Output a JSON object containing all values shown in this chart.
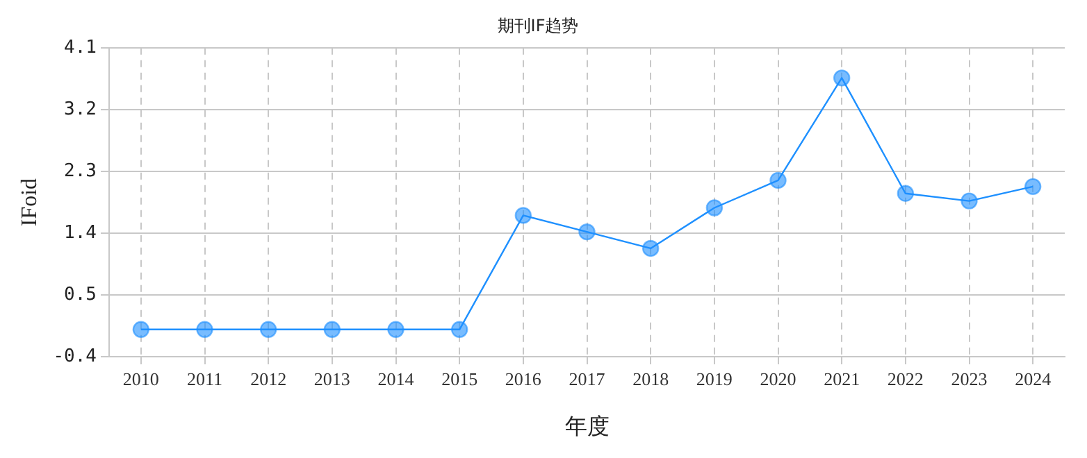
{
  "chart_data": {
    "type": "line",
    "title": "期刊IF趋势",
    "xlabel": "年度",
    "ylabel": "IFoid",
    "categories": [
      "2010",
      "2011",
      "2012",
      "2013",
      "2014",
      "2015",
      "2016",
      "2017",
      "2018",
      "2019",
      "2020",
      "2021",
      "2022",
      "2023",
      "2024"
    ],
    "series": [
      {
        "color": "#1e90ff",
        "values": [
          0,
          0,
          0,
          0,
          0,
          0,
          1.66,
          1.42,
          1.18,
          1.77,
          2.17,
          3.66,
          1.98,
          1.87,
          2.08
        ]
      }
    ],
    "ylim": [
      -0.4,
      4.1
    ],
    "yticks": [
      -0.4,
      0.5,
      1.4,
      2.3,
      3.2,
      4.1
    ],
    "grid": true,
    "marker": "circle",
    "line_style": "solid",
    "legend": false
  }
}
